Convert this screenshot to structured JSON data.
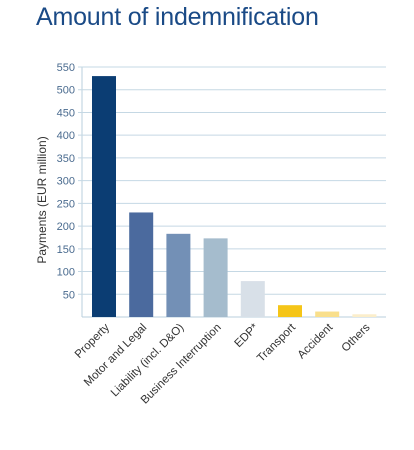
{
  "title": "Amount of indemnification",
  "chart_data": {
    "type": "bar",
    "title": "Amount of indemnification",
    "xlabel": "",
    "ylabel": "Payments (EUR million)",
    "ylim": [
      0,
      550
    ],
    "yticks": [
      50,
      100,
      150,
      200,
      250,
      300,
      350,
      400,
      450,
      500,
      550
    ],
    "grid": true,
    "categories": [
      "Property",
      "Motor and Legal",
      "Liability (incl. D&O)",
      "Business Interruption",
      "EDP*",
      "Transport",
      "Accident",
      "Others"
    ],
    "values": [
      530,
      230,
      183,
      173,
      79,
      26,
      12,
      6
    ],
    "colors": [
      "#0b3d73",
      "#4b6a9e",
      "#7390b6",
      "#a5bccd",
      "#d8e0e8",
      "#f5c518",
      "#f9df8c",
      "#fbeecb"
    ]
  }
}
